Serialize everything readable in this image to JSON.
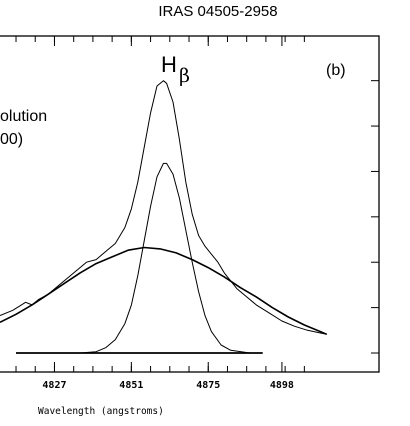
{
  "chart_data": {
    "type": "line",
    "title": "IRAS 04505-2958",
    "panel_label": "(b)",
    "line_label": "H",
    "line_label_greek": "β",
    "partial_text": [
      "olution",
      "00)"
    ],
    "xlabel": "Wavelength (angstroms)",
    "x_ticks": [
      "4827",
      "4851",
      "4875",
      "4898"
    ],
    "x_tick_values": [
      4827,
      4851,
      4875,
      4898
    ],
    "xlim": [
      4810,
      4918
    ],
    "ylim": [
      0,
      1
    ],
    "grid": false,
    "series": [
      {
        "x": [
          4810,
          4814,
          4818,
          4820,
          4822,
          4825,
          4828,
          4831,
          4834,
          4837,
          4840,
          4843,
          4846,
          4849,
          4851,
          4853,
          4855,
          4857,
          4859,
          4861,
          4862,
          4864,
          4866,
          4868,
          4870,
          4872,
          4874,
          4876,
          4878,
          4880,
          4882,
          4884,
          4887,
          4890,
          4894,
          4898,
          4902,
          4906,
          4910,
          4912
        ],
        "y": [
          0.14,
          0.16,
          0.19,
          0.18,
          0.2,
          0.22,
          0.25,
          0.28,
          0.31,
          0.34,
          0.35,
          0.38,
          0.41,
          0.47,
          0.54,
          0.64,
          0.77,
          0.9,
          1.0,
          1.02,
          1.01,
          0.94,
          0.8,
          0.64,
          0.52,
          0.44,
          0.4,
          0.37,
          0.34,
          0.3,
          0.27,
          0.24,
          0.21,
          0.18,
          0.15,
          0.12,
          0.1,
          0.085,
          0.075,
          0.07
        ]
      },
      {
        "x": [
          4835,
          4840,
          4843,
          4846,
          4849,
          4851,
          4853,
          4855,
          4857,
          4859,
          4861,
          4862,
          4864,
          4866,
          4868,
          4870,
          4872,
          4874,
          4876,
          4879,
          4882,
          4888
        ],
        "y": [
          0.0,
          0.005,
          0.02,
          0.05,
          0.11,
          0.18,
          0.29,
          0.42,
          0.55,
          0.66,
          0.71,
          0.71,
          0.67,
          0.58,
          0.46,
          0.34,
          0.23,
          0.14,
          0.08,
          0.03,
          0.01,
          0.0
        ]
      },
      {
        "x": [
          4810,
          4815,
          4820,
          4825,
          4830,
          4835,
          4840,
          4845,
          4850,
          4855,
          4860,
          4865,
          4870,
          4875,
          4880,
          4885,
          4890,
          4895,
          4900,
          4905,
          4910,
          4912
        ],
        "y": [
          0.115,
          0.145,
          0.18,
          0.22,
          0.26,
          0.3,
          0.335,
          0.36,
          0.385,
          0.395,
          0.39,
          0.375,
          0.35,
          0.32,
          0.285,
          0.245,
          0.21,
          0.17,
          0.135,
          0.105,
          0.08,
          0.07
        ]
      }
    ],
    "continuum": {
      "x": [
        4815,
        4892
      ],
      "y": [
        0.0,
        0.0
      ]
    },
    "colors": {
      "line": "#000000",
      "background": "#ffffff"
    }
  }
}
